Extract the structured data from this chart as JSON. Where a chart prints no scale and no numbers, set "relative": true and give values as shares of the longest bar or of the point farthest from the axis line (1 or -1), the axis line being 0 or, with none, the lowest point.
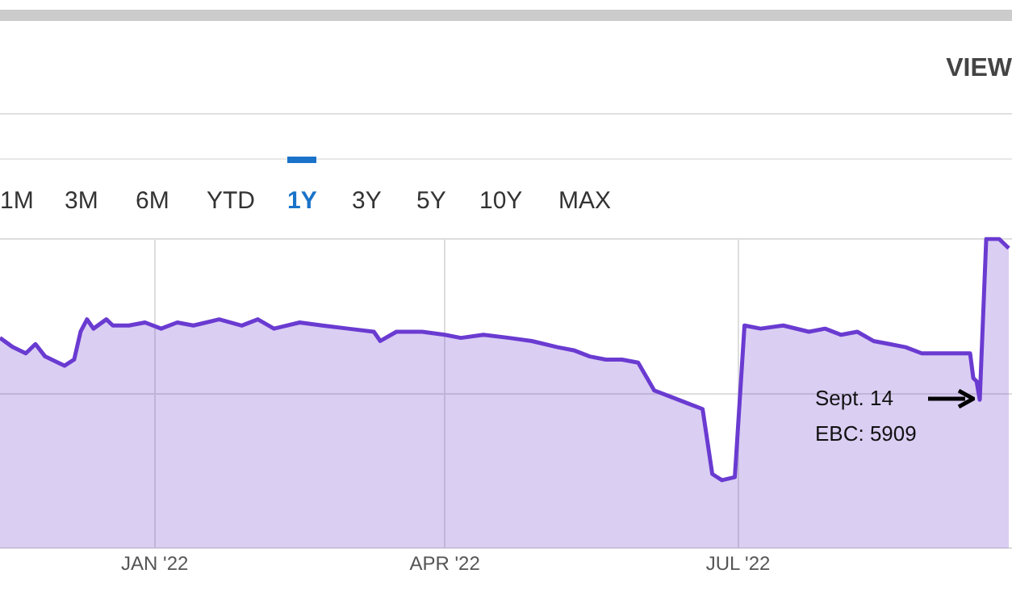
{
  "chart_data": {
    "type": "area",
    "relative": true,
    "color": "#6a3bd1",
    "grid": true,
    "legend": false,
    "marker": "none",
    "xlim": [
      "2021-11-14",
      "2022-09-24"
    ],
    "xticks": [
      {
        "value": "2022-01-01",
        "label": "JAN '22"
      },
      {
        "value": "2022-04-01",
        "label": "APR '22"
      },
      {
        "value": "2022-07-01",
        "label": "JUL '22"
      }
    ],
    "x": [
      "2021-11-14",
      "2021-11-18",
      "2021-11-22",
      "2021-11-25",
      "2021-11-28",
      "2021-12-02",
      "2021-12-04",
      "2021-12-07",
      "2021-12-09",
      "2021-12-11",
      "2021-12-13",
      "2021-12-17",
      "2021-12-19",
      "2021-12-24",
      "2021-12-29",
      "2022-01-03",
      "2022-01-08",
      "2022-01-13",
      "2022-01-21",
      "2022-01-28",
      "2022-02-02",
      "2022-02-07",
      "2022-02-15",
      "2022-02-22",
      "2022-03-02",
      "2022-03-10",
      "2022-03-12",
      "2022-03-17",
      "2022-03-25",
      "2022-04-01",
      "2022-04-06",
      "2022-04-13",
      "2022-04-21",
      "2022-04-28",
      "2022-05-06",
      "2022-05-11",
      "2022-05-16",
      "2022-05-21",
      "2022-05-26",
      "2022-05-31",
      "2022-06-05",
      "2022-06-10",
      "2022-06-15",
      "2022-06-20",
      "2022-06-23",
      "2022-06-26",
      "2022-06-30",
      "2022-07-03",
      "2022-07-08",
      "2022-07-15",
      "2022-07-23",
      "2022-07-28",
      "2022-08-02",
      "2022-08-07",
      "2022-08-12",
      "2022-08-17",
      "2022-08-22",
      "2022-08-27",
      "2022-09-01",
      "2022-09-11",
      "2022-09-12",
      "2022-09-13",
      "2022-09-14",
      "2022-09-16",
      "2022-09-20",
      "2022-09-23"
    ],
    "values": [
      0.68,
      0.65,
      0.63,
      0.66,
      0.62,
      0.6,
      0.59,
      0.61,
      0.7,
      0.74,
      0.71,
      0.74,
      0.72,
      0.72,
      0.73,
      0.71,
      0.73,
      0.72,
      0.74,
      0.72,
      0.74,
      0.71,
      0.73,
      0.72,
      0.71,
      0.7,
      0.67,
      0.7,
      0.7,
      0.69,
      0.68,
      0.69,
      0.68,
      0.67,
      0.65,
      0.64,
      0.62,
      0.61,
      0.61,
      0.6,
      0.51,
      0.49,
      0.47,
      0.45,
      0.24,
      0.22,
      0.23,
      0.72,
      0.71,
      0.72,
      0.7,
      0.71,
      0.69,
      0.7,
      0.67,
      0.66,
      0.65,
      0.63,
      0.63,
      0.63,
      0.55,
      0.54,
      0.48,
      1,
      1,
      0.97
    ],
    "annotations": [
      "Sept. 14\nEBC: 5909",
      "1M",
      "3M",
      "6M",
      "YTD",
      "1Y",
      "3Y",
      "5Y",
      "10Y",
      "MAX",
      "VIEW"
    ]
  }
}
